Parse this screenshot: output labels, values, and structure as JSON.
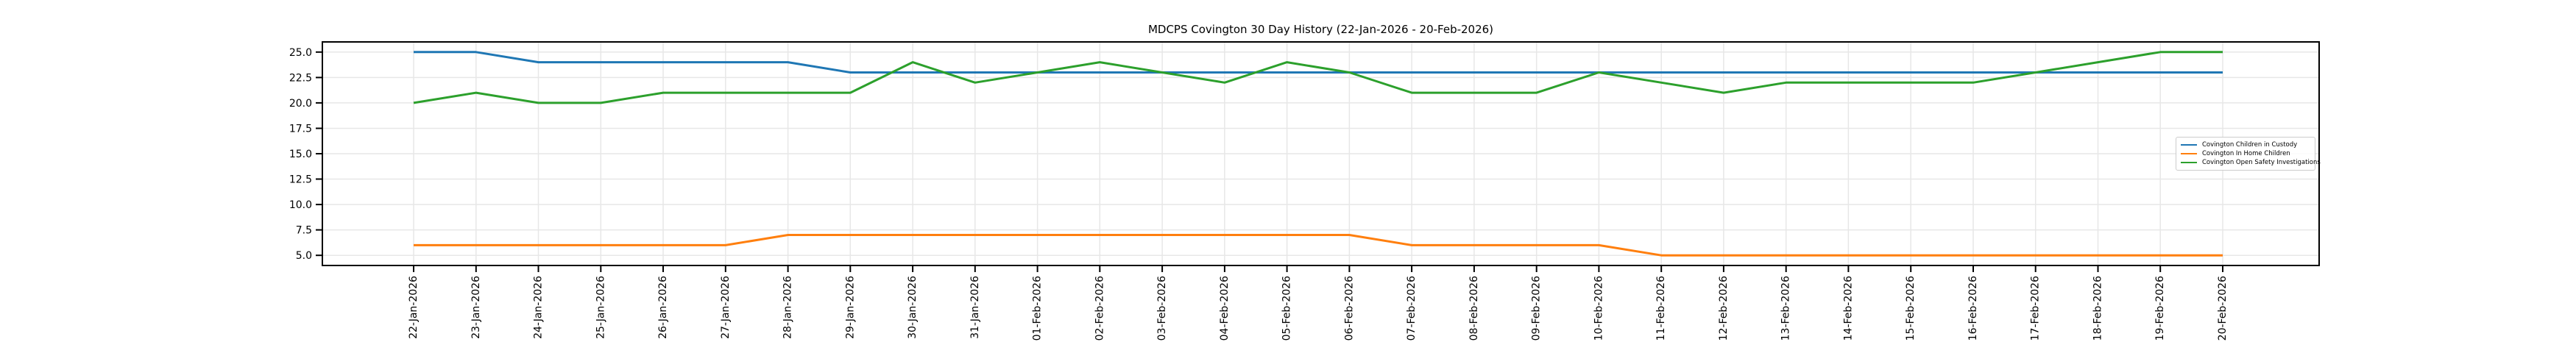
{
  "chart_data": {
    "type": "line",
    "title": "MDCPS Covington 30 Day History (22-Jan-2026 - 20-Feb-2026)",
    "xlabel": "",
    "ylabel": "",
    "x_labels": [
      "22-Jan-2026",
      "23-Jan-2026",
      "24-Jan-2026",
      "25-Jan-2026",
      "26-Jan-2026",
      "27-Jan-2026",
      "28-Jan-2026",
      "29-Jan-2026",
      "30-Jan-2026",
      "31-Jan-2026",
      "01-Feb-2026",
      "02-Feb-2026",
      "03-Feb-2026",
      "04-Feb-2026",
      "05-Feb-2026",
      "06-Feb-2026",
      "07-Feb-2026",
      "08-Feb-2026",
      "09-Feb-2026",
      "10-Feb-2026",
      "11-Feb-2026",
      "12-Feb-2026",
      "13-Feb-2026",
      "14-Feb-2026",
      "15-Feb-2026",
      "16-Feb-2026",
      "17-Feb-2026",
      "18-Feb-2026",
      "19-Feb-2026",
      "20-Feb-2026"
    ],
    "yticks": [
      5.0,
      7.5,
      10.0,
      12.5,
      15.0,
      17.5,
      20.0,
      22.5,
      25.0
    ],
    "ylim": [
      4,
      26
    ],
    "grid": true,
    "legend_position": "center right",
    "series": [
      {
        "name": "Covington Children in Custody",
        "color": "#1f77b4",
        "values": [
          25,
          25,
          24,
          24,
          24,
          24,
          24,
          23,
          23,
          23,
          23,
          23,
          23,
          23,
          23,
          23,
          23,
          23,
          23,
          23,
          23,
          23,
          23,
          23,
          23,
          23,
          23,
          23,
          23,
          23
        ]
      },
      {
        "name": "Covington In Home Children",
        "color": "#ff7f0e",
        "values": [
          6,
          6,
          6,
          6,
          6,
          6,
          7,
          7,
          7,
          7,
          7,
          7,
          7,
          7,
          7,
          7,
          6,
          6,
          6,
          6,
          5,
          5,
          5,
          5,
          5,
          5,
          5,
          5,
          5,
          5
        ]
      },
      {
        "name": "Covington Open Safety Investigations",
        "color": "#2ca02c",
        "values": [
          20,
          21,
          20,
          20,
          21,
          21,
          21,
          21,
          24,
          22,
          23,
          24,
          23,
          22,
          24,
          23,
          21,
          21,
          21,
          23,
          22,
          21,
          22,
          22,
          22,
          22,
          23,
          24,
          25,
          25
        ]
      }
    ],
    "style": {
      "grid_color": "#e7e7e7",
      "spine_color": "#000000",
      "tick_color": "#000000",
      "text_color": "#000000",
      "background": "#ffffff"
    }
  }
}
